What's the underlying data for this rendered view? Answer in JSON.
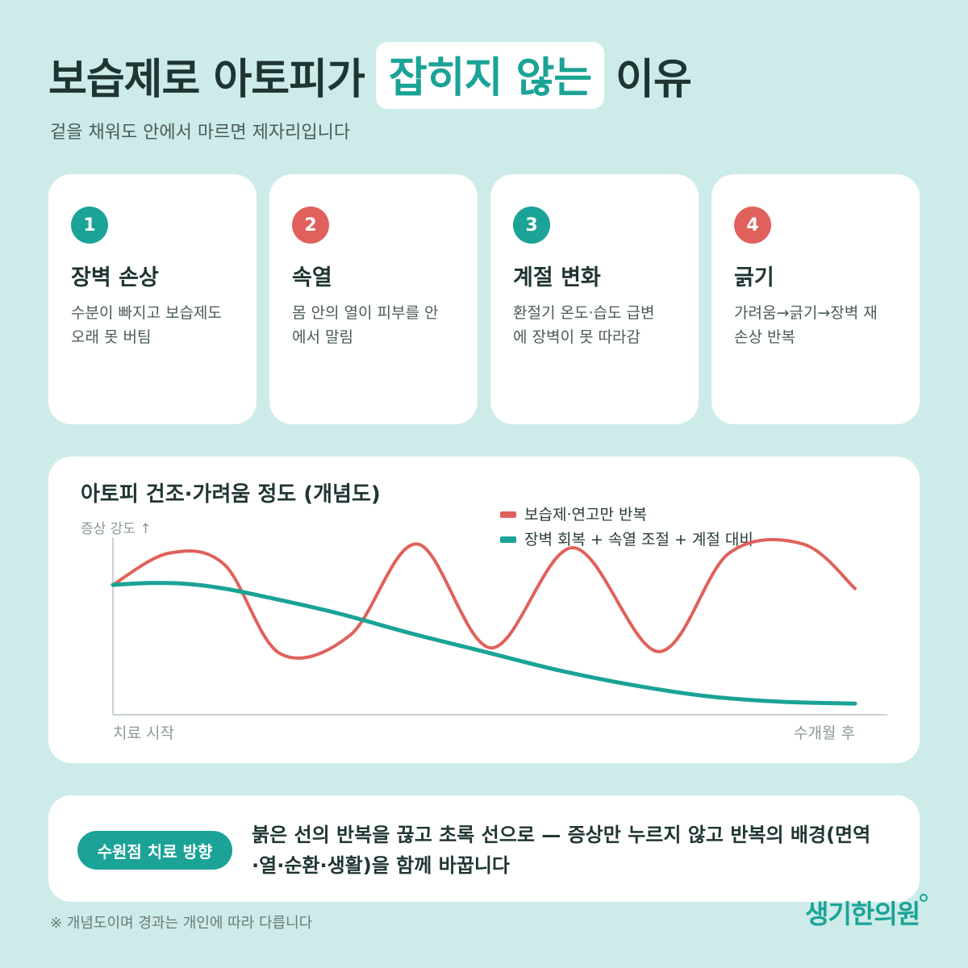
{
  "header": {
    "title_before": "보습제로 아토피가",
    "title_highlight": "잡히지 않는",
    "title_after": "이유",
    "subtitle": "겉을 채워도 안에서 마르면 제자리입니다"
  },
  "cards": [
    {
      "number": "1",
      "title": "장벽 손상",
      "desc_lines": [
        "수분이 빠지고 보습제도",
        "오래 못 버팀"
      ],
      "color": "#1aa396"
    },
    {
      "number": "2",
      "title": "속열",
      "desc_lines": [
        "몸 안의 열이 피부를 안",
        "에서 말림"
      ],
      "color": "#e0615b"
    },
    {
      "number": "3",
      "title": "계절 변화",
      "desc_lines": [
        "환절기 온도·습도 급변",
        "에 장벽이 못 따라감"
      ],
      "color": "#1aa396"
    },
    {
      "number": "4",
      "title": "긁기",
      "desc_lines": [
        "가려움→긁기→장벽 재",
        "손상 반복"
      ],
      "color": "#e0615b"
    }
  ],
  "chart_data": {
    "type": "line",
    "title": "아토피 건조·가려움 정도 (개념도)",
    "ylabel": "증상 강도 ↑",
    "xlabel_start": "치료 시작",
    "xlabel_end": "수개월 후",
    "legend_position": "top-right",
    "ylim": [
      0,
      100
    ],
    "series": [
      {
        "name": "보습제·연고만 반복",
        "color": "#e0615b",
        "x": [
          0,
          7.5,
          15,
          22.5,
          32,
          41,
          51,
          62,
          73.5,
          83,
          93,
          100
        ],
        "values": [
          70,
          87,
          81,
          33,
          43,
          92,
          36,
          90,
          34,
          87,
          92,
          68
        ]
      },
      {
        "name": "장벽 회복 + 속열 조절 + 계절 대비",
        "color": "#1aa396",
        "x": [
          0,
          5,
          10,
          15,
          20,
          30,
          40,
          50,
          60,
          70,
          80,
          90,
          100
        ],
        "values": [
          70,
          71,
          70.5,
          68,
          64,
          55,
          44,
          34,
          24,
          16,
          10,
          7,
          6
        ]
      }
    ]
  },
  "bottom": {
    "badge": "수원점 치료 방향",
    "message_line1": "붉은 선의 반복을 끊고 초록 선으로 — 증상만 누르지 않고 반복의 배경(면역",
    "message_line2": "·열·순환·생활)을 함께 바꿉니다"
  },
  "footnote": "※ 개념도이며 경과는 개인에 따라 다릅니다",
  "logo": "생기한의원"
}
